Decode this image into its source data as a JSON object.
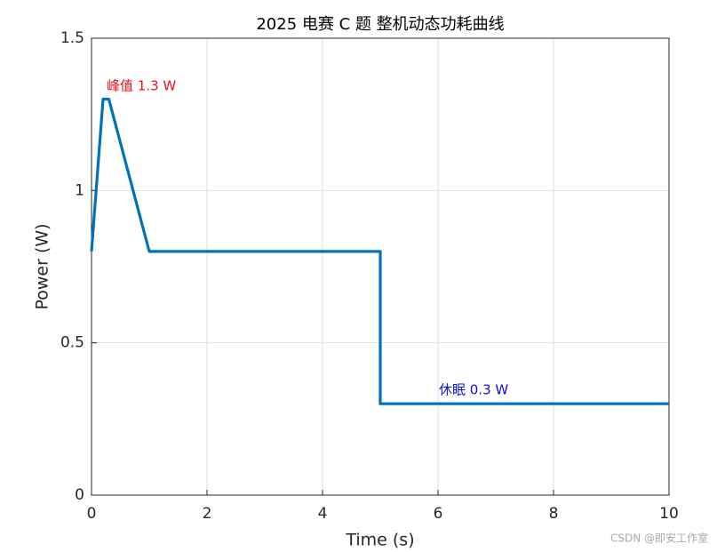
{
  "chart_data": {
    "type": "line",
    "title": "2025 电赛 C 题 整机动态功耗曲线",
    "x_label": "Time (s)",
    "y_label": "Power (W)",
    "x": [
      0,
      0.2,
      0.3,
      1,
      5,
      5,
      10
    ],
    "series": [
      {
        "name": "Power",
        "color": "#0072bd",
        "values": [
          0.8,
          1.3,
          1.3,
          0.8,
          0.8,
          0.3,
          0.3
        ]
      }
    ],
    "xlim": [
      0,
      10
    ],
    "xticks": [
      0,
      2,
      4,
      6,
      8,
      10
    ],
    "ylim": [
      0,
      1.5
    ],
    "yticks": [
      0,
      0.5,
      1,
      1.5
    ],
    "grid": true,
    "annotations": [
      {
        "text": "峰值 1.3 W",
        "color": "#e8121a"
      },
      {
        "text": "休眠 0.3 W",
        "color": "#1010e0"
      }
    ],
    "watermark": "CSDN @即安工作室"
  }
}
